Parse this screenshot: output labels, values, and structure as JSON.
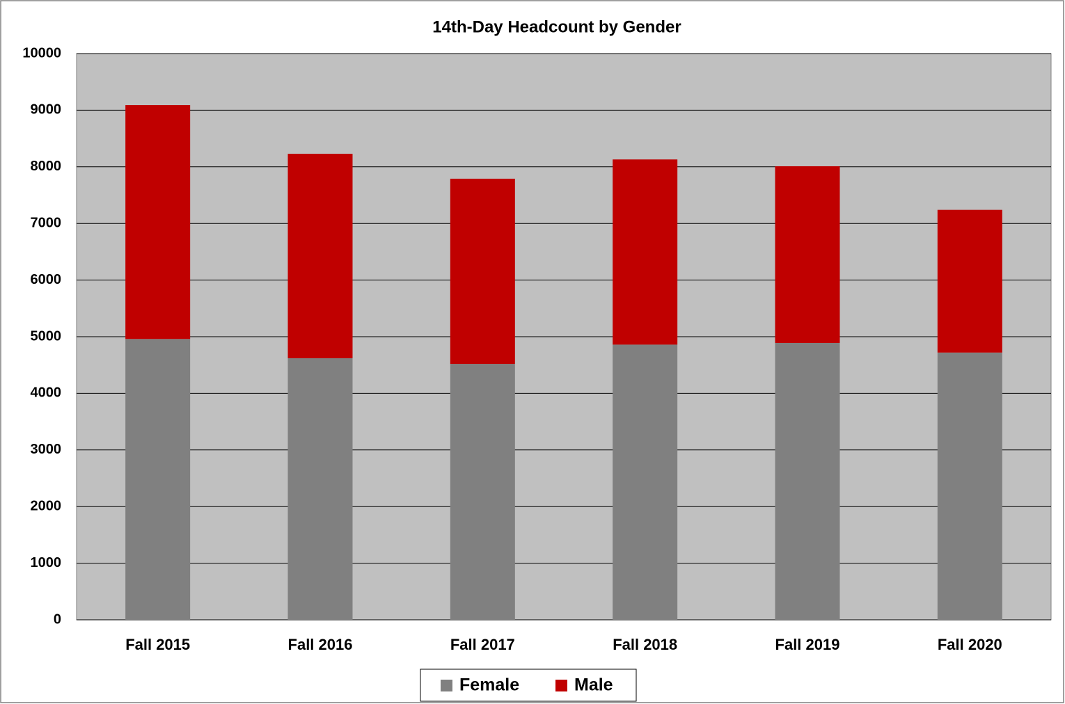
{
  "chart_data": {
    "type": "stacked_bar",
    "title": "14th-Day Headcount by Gender",
    "categories": [
      "Fall 2015",
      "Fall 2016",
      "Fall 2017",
      "Fall 2018",
      "Fall 2019",
      "Fall 2020"
    ],
    "series": [
      {
        "name": "Female",
        "color": "#808080",
        "values": [
          4960,
          4620,
          4520,
          4860,
          4890,
          4720
        ]
      },
      {
        "name": "Male",
        "color": "#c00000",
        "values": [
          4130,
          3610,
          3270,
          3270,
          3120,
          2520
        ]
      }
    ],
    "ylim": [
      0,
      10000
    ],
    "yticks": [
      0,
      1000,
      2000,
      3000,
      4000,
      5000,
      6000,
      7000,
      8000,
      9000,
      10000
    ],
    "grid": true,
    "legend": "bottom"
  }
}
